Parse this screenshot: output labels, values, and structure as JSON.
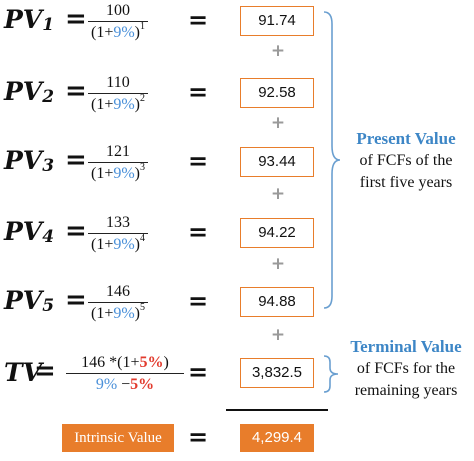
{
  "rows": [
    {
      "pv": "PV",
      "sub": "1",
      "num": "100",
      "den_open": "(1+",
      "rate": "9%",
      "den_close": ")",
      "exp": "1",
      "value": "91.74"
    },
    {
      "pv": "PV",
      "sub": "2",
      "num": "110",
      "den_open": "(1+",
      "rate": "9%",
      "den_close": ")",
      "exp": "2",
      "value": "92.58"
    },
    {
      "pv": "PV",
      "sub": "3",
      "num": "121",
      "den_open": "(1+",
      "rate": "9%",
      "den_close": ")",
      "exp": "3",
      "value": "93.44"
    },
    {
      "pv": "PV",
      "sub": "4",
      "num": "133",
      "den_open": "(1+",
      "rate": "9%",
      "den_close": ")",
      "exp": "4",
      "value": "94.22"
    },
    {
      "pv": "PV",
      "sub": "5",
      "num": "146",
      "den_open": "(1+",
      "rate": "9%",
      "den_close": ")",
      "exp": "5",
      "value": "94.88"
    }
  ],
  "equals": "=",
  "plus": "+",
  "tv": {
    "label": "TV",
    "num_prefix": "146 *(1+",
    "growth": "5%",
    "num_suffix": ")",
    "den_rate": "9%",
    "den_minus": " −",
    "den_growth": "5%",
    "value": "3,832.5"
  },
  "present_value_label": {
    "title": "Present Value",
    "line1": "of FCFs of the",
    "line2": "first five years"
  },
  "terminal_value_label": {
    "title": "Terminal Value",
    "line1": "of FCFs for the",
    "line2": "remaining years"
  },
  "intrinsic": {
    "label": "Intrinsic Value",
    "value": "4,299.4"
  },
  "colors": {
    "accent_orange": "#e87d2b",
    "rate_blue": "#4a90d9",
    "growth_red": "#e23b2e",
    "label_blue": "#3d86c6",
    "plus_gray": "#9a9a9a"
  }
}
